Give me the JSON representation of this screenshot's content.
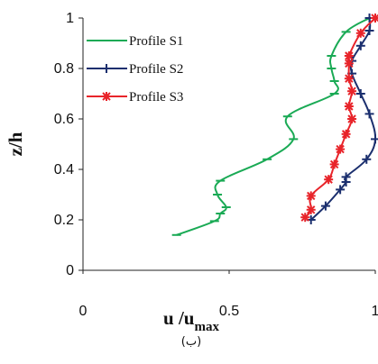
{
  "chart_data": {
    "type": "line",
    "title": "",
    "xlabel": "u /u",
    "xlabel_sub": "max",
    "ylabel": "z/h",
    "caption": "(ب)",
    "xlim": [
      0,
      1
    ],
    "ylim": [
      0,
      1
    ],
    "xticks": [
      "0",
      "0.5",
      "1"
    ],
    "yticks": [
      "0",
      "0.2",
      "0.4",
      "0.6",
      "0.8",
      "1"
    ],
    "grid": false,
    "legend_position": "top-left",
    "series": [
      {
        "name": "Profile S1",
        "color": "#1aaa55",
        "marker": "dash",
        "points": [
          [
            0.32,
            0.14
          ],
          [
            0.45,
            0.195
          ],
          [
            0.47,
            0.225
          ],
          [
            0.49,
            0.25
          ],
          [
            0.46,
            0.3
          ],
          [
            0.47,
            0.355
          ],
          [
            0.63,
            0.44
          ],
          [
            0.72,
            0.52
          ],
          [
            0.7,
            0.61
          ],
          [
            0.86,
            0.7
          ],
          [
            0.86,
            0.75
          ],
          [
            0.85,
            0.8
          ],
          [
            0.85,
            0.85
          ],
          [
            0.9,
            0.945
          ],
          [
            0.98,
            1.0
          ]
        ]
      },
      {
        "name": "Profile S2",
        "color": "#1b2f6e",
        "marker": "plus",
        "points": [
          [
            0.78,
            0.2
          ],
          [
            0.83,
            0.255
          ],
          [
            0.88,
            0.32
          ],
          [
            0.9,
            0.35
          ],
          [
            0.9,
            0.37
          ],
          [
            0.97,
            0.44
          ],
          [
            1.0,
            0.52
          ],
          [
            0.98,
            0.62
          ],
          [
            0.95,
            0.7
          ],
          [
            0.92,
            0.78
          ],
          [
            0.92,
            0.83
          ],
          [
            0.95,
            0.89
          ],
          [
            0.98,
            0.95
          ],
          [
            0.98,
            1.0
          ]
        ]
      },
      {
        "name": "Profile S3",
        "color": "#e8242a",
        "marker": "star",
        "points": [
          [
            0.76,
            0.21
          ],
          [
            0.78,
            0.24
          ],
          [
            0.78,
            0.295
          ],
          [
            0.84,
            0.36
          ],
          [
            0.86,
            0.42
          ],
          [
            0.88,
            0.48
          ],
          [
            0.9,
            0.54
          ],
          [
            0.92,
            0.6
          ],
          [
            0.91,
            0.65
          ],
          [
            0.92,
            0.71
          ],
          [
            0.91,
            0.76
          ],
          [
            0.91,
            0.82
          ],
          [
            0.91,
            0.85
          ],
          [
            0.95,
            0.94
          ],
          [
            1.0,
            1.0
          ]
        ]
      }
    ]
  }
}
